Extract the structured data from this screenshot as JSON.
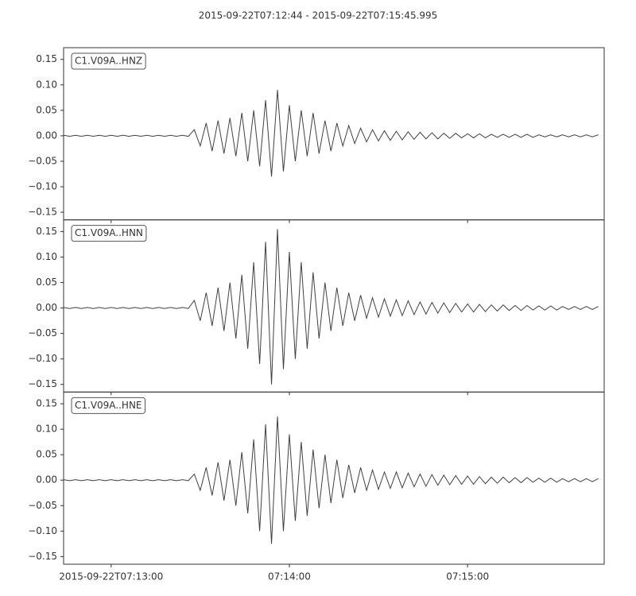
{
  "chart_data": {
    "type": "line",
    "title": "2015-09-22T07:12:44  -  2015-09-22T07:15:45.995",
    "x": [
      0,
      2,
      4,
      6,
      8,
      10,
      12,
      14,
      16,
      18,
      20,
      22,
      24,
      26,
      28,
      30,
      32,
      34,
      36,
      38,
      40,
      42,
      44,
      46,
      48,
      50,
      52,
      54,
      56,
      58,
      60,
      62,
      64,
      66,
      68,
      70,
      72,
      74,
      76,
      78,
      80,
      82,
      84,
      86,
      88,
      90,
      92,
      94,
      96,
      98,
      100,
      102,
      104,
      106,
      108,
      110,
      112,
      114,
      116,
      118,
      120,
      122,
      124,
      126,
      128,
      130,
      132,
      134,
      136,
      138,
      140,
      142,
      144,
      146,
      148,
      150,
      152,
      154,
      156,
      158,
      160,
      162,
      164,
      166,
      168,
      170,
      172,
      174,
      176,
      178,
      180
    ],
    "xlim": [
      0,
      181.995
    ],
    "xticks": [
      {
        "value": 16,
        "label": "2015-09-22T07:13:00"
      },
      {
        "value": 76,
        "label": "07:14:00"
      },
      {
        "value": 136,
        "label": "07:15:00"
      }
    ],
    "ylim": [
      -0.165,
      0.173
    ],
    "yticks": [
      {
        "value": -0.15,
        "label": "−0.15"
      },
      {
        "value": -0.1,
        "label": "−0.10"
      },
      {
        "value": -0.05,
        "label": "−0.05"
      },
      {
        "value": 0,
        "label": "0.00"
      },
      {
        "value": 0.05,
        "label": "0.05"
      },
      {
        "value": 0.1,
        "label": "0.10"
      },
      {
        "value": 0.15,
        "label": "0.15"
      }
    ],
    "series": [
      {
        "name": "C1.V09A..HNZ",
        "color": "#404040",
        "values": [
          0.001,
          -0.001,
          0.001,
          -0.001,
          0.001,
          -0.001,
          0.001,
          -0.001,
          0.001,
          -0.001,
          0.001,
          -0.001,
          0.001,
          -0.001,
          0.001,
          -0.001,
          0.001,
          -0.001,
          0.001,
          -0.001,
          0.001,
          -0.001,
          0.012,
          -0.02,
          0.025,
          -0.03,
          0.03,
          -0.035,
          0.035,
          -0.04,
          0.045,
          -0.05,
          0.05,
          -0.06,
          0.07,
          -0.08,
          0.09,
          -0.07,
          0.06,
          -0.05,
          0.05,
          -0.04,
          0.045,
          -0.035,
          0.03,
          -0.03,
          0.025,
          -0.02,
          0.02,
          -0.015,
          0.015,
          -0.012,
          0.012,
          -0.01,
          0.01,
          -0.009,
          0.009,
          -0.008,
          0.008,
          -0.007,
          0.007,
          -0.006,
          0.006,
          -0.006,
          0.005,
          -0.005,
          0.005,
          -0.004,
          0.004,
          -0.004,
          0.004,
          -0.004,
          0.003,
          -0.003,
          0.003,
          -0.003,
          0.003,
          -0.003,
          0.003,
          -0.003,
          0.002,
          -0.002,
          0.002,
          -0.002,
          0.002,
          -0.002,
          0.002,
          -0.002,
          0.002,
          -0.002,
          0.002
        ]
      },
      {
        "name": "C1.V09A..HNN",
        "color": "#404040",
        "values": [
          0.001,
          -0.001,
          0.001,
          -0.001,
          0.001,
          -0.001,
          0.001,
          -0.001,
          0.001,
          -0.001,
          0.001,
          -0.001,
          0.001,
          -0.001,
          0.001,
          -0.001,
          0.001,
          -0.001,
          0.001,
          -0.001,
          0.001,
          -0.001,
          0.015,
          -0.025,
          0.03,
          -0.035,
          0.04,
          -0.045,
          0.05,
          -0.06,
          0.065,
          -0.08,
          0.09,
          -0.11,
          0.13,
          -0.15,
          0.155,
          -0.12,
          0.11,
          -0.1,
          0.09,
          -0.08,
          0.07,
          -0.06,
          0.05,
          -0.045,
          0.04,
          -0.035,
          0.03,
          -0.025,
          0.025,
          -0.02,
          0.02,
          -0.018,
          0.018,
          -0.016,
          0.016,
          -0.015,
          0.014,
          -0.013,
          0.012,
          -0.012,
          0.011,
          -0.01,
          0.01,
          -0.009,
          0.009,
          -0.008,
          0.008,
          -0.008,
          0.007,
          -0.007,
          0.006,
          -0.006,
          0.006,
          -0.005,
          0.005,
          -0.005,
          0.005,
          -0.004,
          0.004,
          -0.004,
          0.004,
          -0.004,
          0.003,
          -0.003,
          0.003,
          -0.003,
          0.003,
          -0.003,
          0.003
        ]
      },
      {
        "name": "C1.V09A..HNE",
        "color": "#404040",
        "values": [
          0.001,
          -0.001,
          0.001,
          -0.001,
          0.001,
          -0.001,
          0.001,
          -0.001,
          0.001,
          -0.001,
          0.001,
          -0.001,
          0.001,
          -0.001,
          0.001,
          -0.001,
          0.001,
          -0.001,
          0.001,
          -0.001,
          0.001,
          -0.001,
          0.012,
          -0.02,
          0.025,
          -0.03,
          0.035,
          -0.04,
          0.04,
          -0.05,
          0.055,
          -0.065,
          0.08,
          -0.1,
          0.11,
          -0.125,
          0.125,
          -0.1,
          0.09,
          -0.08,
          0.075,
          -0.07,
          0.06,
          -0.055,
          0.05,
          -0.045,
          0.04,
          -0.035,
          0.03,
          -0.025,
          0.025,
          -0.02,
          0.02,
          -0.018,
          0.016,
          -0.016,
          0.016,
          -0.015,
          0.014,
          -0.013,
          0.012,
          -0.012,
          0.011,
          -0.01,
          0.01,
          -0.009,
          0.009,
          -0.008,
          0.008,
          -0.008,
          0.007,
          -0.007,
          0.006,
          -0.006,
          0.006,
          -0.005,
          0.005,
          -0.005,
          0.005,
          -0.004,
          0.004,
          -0.004,
          0.004,
          -0.004,
          0.003,
          -0.003,
          0.003,
          -0.003,
          0.003,
          -0.003,
          0.003
        ]
      }
    ]
  }
}
